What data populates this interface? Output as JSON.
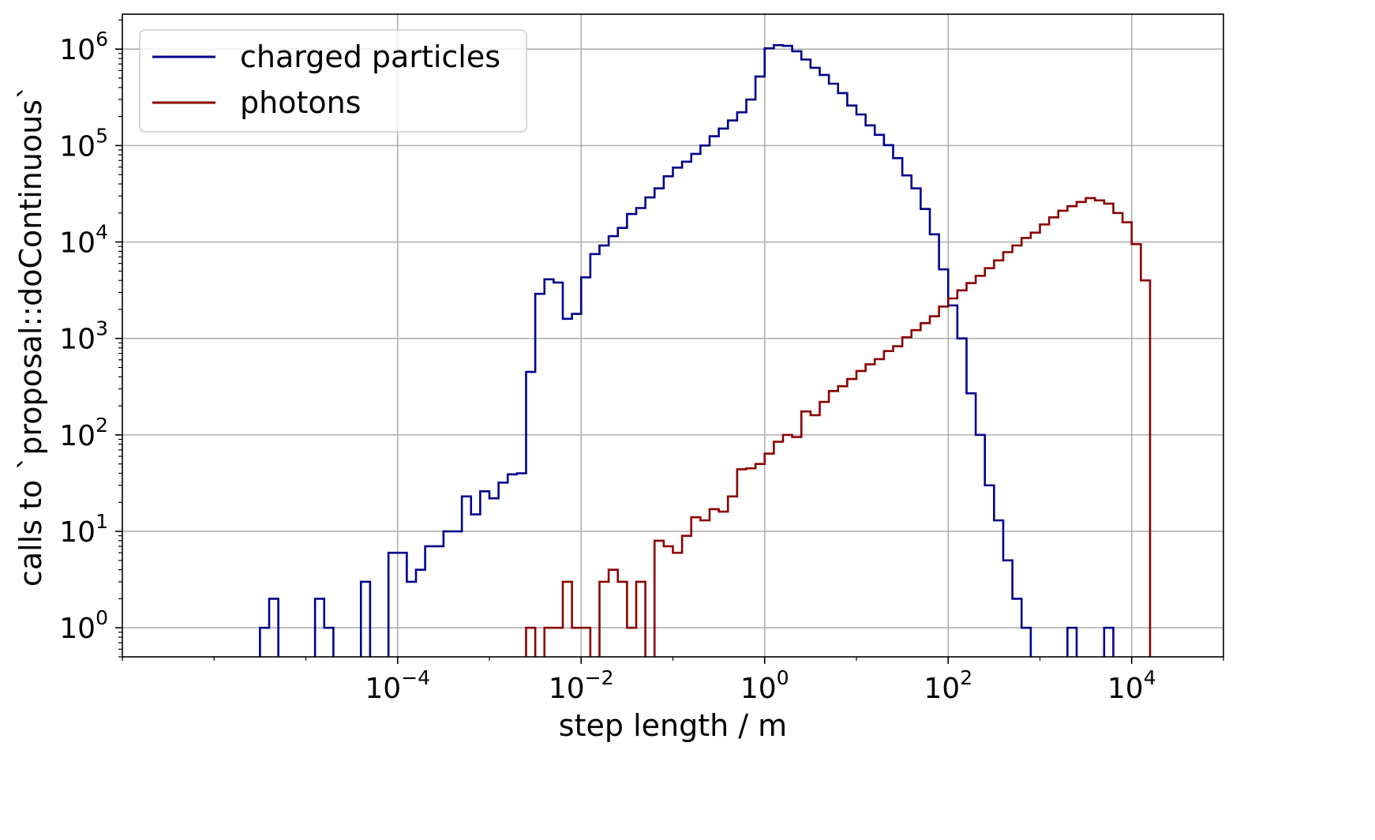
{
  "chart_data": {
    "type": "line",
    "subtype": "step-histogram",
    "title": "",
    "xlabel": "step length / m",
    "ylabel": "calls to `proposal::doContinuous`",
    "xscale": "log",
    "yscale": "log",
    "xlim": [
      1e-07,
      100000.0
    ],
    "ylim": [
      0.5,
      2300000.0
    ],
    "grid": true,
    "legend_position": "top-left",
    "x_ticks": [
      {
        "value": 0.0001,
        "base": "10",
        "exp": "−4"
      },
      {
        "value": 0.01,
        "base": "10",
        "exp": "−2"
      },
      {
        "value": 1,
        "base": "10",
        "exp": "0"
      },
      {
        "value": 100,
        "base": "10",
        "exp": "2"
      },
      {
        "value": 10000,
        "base": "10",
        "exp": "4"
      }
    ],
    "y_ticks": [
      {
        "value": 1,
        "base": "10",
        "exp": "0"
      },
      {
        "value": 10,
        "base": "10",
        "exp": "1"
      },
      {
        "value": 100,
        "base": "10",
        "exp": "2"
      },
      {
        "value": 1000,
        "base": "10",
        "exp": "3"
      },
      {
        "value": 10000,
        "base": "10",
        "exp": "4"
      },
      {
        "value": 100000,
        "base": "10",
        "exp": "5"
      },
      {
        "value": 1000000,
        "base": "10",
        "exp": "6"
      }
    ],
    "bins": {
      "log10_min": -5.5,
      "log10_max": 4.2,
      "count": 97
    },
    "series": [
      {
        "name": "charged particles",
        "color": "#00008b",
        "values": [
          1,
          2,
          0,
          0,
          0,
          0,
          2,
          1,
          0,
          0,
          0,
          3,
          0,
          0,
          6,
          6,
          3,
          4,
          7,
          7,
          10,
          10,
          23,
          15,
          26,
          22,
          32,
          39,
          40,
          450,
          2900,
          4100,
          3800,
          1600,
          1800,
          4300,
          7500,
          9200,
          11500,
          14000,
          19500,
          22500,
          29000,
          36000,
          48000,
          59000,
          68000,
          82000,
          100000,
          125000,
          150000,
          182000,
          221000,
          300000,
          520000,
          1020000,
          1100000,
          1080000,
          950000,
          780000,
          640000,
          540000,
          438000,
          350000,
          260000,
          210000,
          162000,
          129000,
          101000,
          74000,
          49000,
          36000,
          22000,
          12000,
          5200,
          2200,
          1000,
          270,
          100,
          30,
          13,
          5,
          2,
          1,
          0,
          0,
          0,
          0,
          1,
          0,
          0,
          0,
          1,
          0,
          0,
          0,
          0
        ]
      },
      {
        "name": "photons",
        "color": "#8b0000",
        "values": [
          0,
          0,
          0,
          0,
          0,
          0,
          0,
          0,
          0,
          0,
          0,
          0,
          0,
          0,
          0,
          0,
          0,
          0,
          0,
          0,
          0,
          0,
          0,
          0,
          0,
          0,
          0,
          0,
          0,
          1,
          0,
          1,
          1,
          3,
          1,
          1,
          0,
          3,
          4,
          3,
          1,
          3,
          0,
          8,
          7,
          6,
          9,
          14,
          13,
          17,
          16,
          23,
          44,
          45,
          50,
          64,
          85,
          100,
          95,
          175,
          160,
          220,
          285,
          320,
          380,
          460,
          540,
          610,
          740,
          830,
          1030,
          1220,
          1440,
          1700,
          2140,
          2600,
          3150,
          3750,
          4460,
          5350,
          6450,
          7850,
          9200,
          11000,
          12500,
          15200,
          18000,
          21100,
          23500,
          26000,
          28500,
          27000,
          25000,
          20000,
          16000,
          9500,
          4000
        ]
      }
    ]
  },
  "colors": {
    "charged": "#00008b",
    "photons": "#8b0000",
    "grid": "#b0b0b0"
  }
}
